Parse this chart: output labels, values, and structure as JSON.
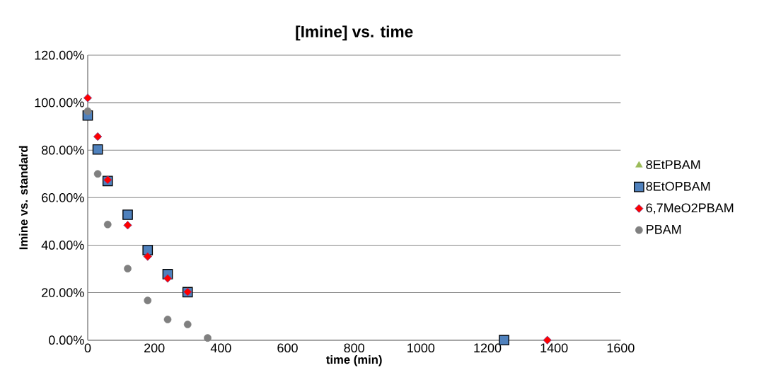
{
  "chart_data": {
    "type": "scatter",
    "title": "[Imine] vs. time",
    "xlabel": "time (min)",
    "ylabel": "Imine vs. standard",
    "xlim": [
      0,
      1600
    ],
    "xticks": [
      0,
      200,
      400,
      600,
      800,
      1000,
      1200,
      1400,
      1600
    ],
    "ylim": [
      0,
      1.2
    ],
    "yticks": [
      {
        "value": 0,
        "label": "0.00%"
      },
      {
        "value": 0.2,
        "label": "20.00%"
      },
      {
        "value": 0.4,
        "label": "40.00%"
      },
      {
        "value": 0.6,
        "label": "60.00%"
      },
      {
        "value": 0.8,
        "label": "80.00%"
      },
      {
        "value": 1.0,
        "label": "100.00%"
      },
      {
        "value": 1.2,
        "label": "120.00%"
      }
    ],
    "grid": "y",
    "legend": "right",
    "series": [
      {
        "name": "8EtPBAM",
        "color": "#9bbb59",
        "marker": "triangle"
      },
      {
        "name": "8EtOPBAM",
        "color": "#4f81bd",
        "marker": "square",
        "x": [
          0,
          30,
          60,
          120,
          180,
          240,
          300,
          1250
        ],
        "values": [
          0.946,
          0.803,
          0.67,
          0.528,
          0.379,
          0.278,
          0.202,
          0
        ]
      },
      {
        "name": "6,7MeO2PBAM",
        "color": "#ff0000",
        "marker": "diamond",
        "x": [
          0,
          30,
          60,
          120,
          180,
          240,
          300,
          1380
        ],
        "values": [
          1.02,
          0.857,
          0.675,
          0.484,
          0.352,
          0.26,
          0.203,
          0
        ]
      },
      {
        "name": "PBAM",
        "color": "#808080",
        "marker": "circle",
        "x": [
          0,
          30,
          60,
          120,
          180,
          240,
          300,
          360
        ],
        "values": [
          0.964,
          0.7,
          0.487,
          0.301,
          0.167,
          0.087,
          0.066,
          0.009
        ]
      }
    ]
  }
}
